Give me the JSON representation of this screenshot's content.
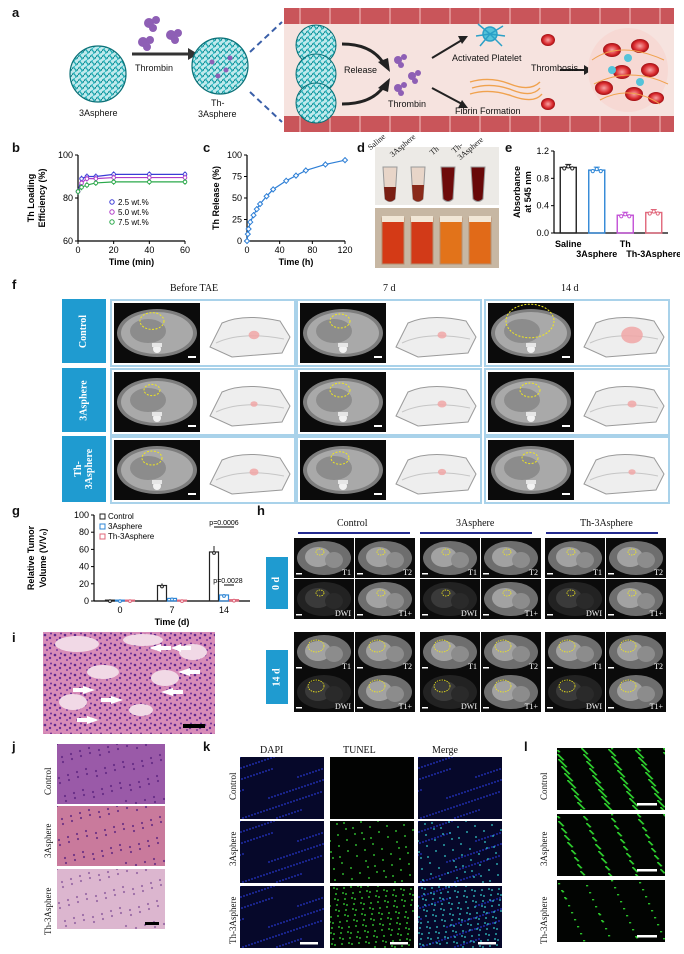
{
  "panels": {
    "a": "a",
    "b": "b",
    "c": "c",
    "d": "d",
    "e": "e",
    "f": "f",
    "g": "g",
    "h": "h",
    "i": "i",
    "j": "j",
    "k": "k",
    "l": "l"
  },
  "schematic": {
    "sphere_label": "3Asphere",
    "thrombin_arrow_label": "Thrombin",
    "loaded_label_line1": "Th-",
    "loaded_label_line2": "3Asphere",
    "release_label": "Release",
    "thrombin_label": "Thrombin",
    "platelet_label": "Activated Platelet",
    "fibrin_label": "Fibrin Formation",
    "thrombosis_label": "Thrombosis"
  },
  "panel_d": {
    "tubes": [
      "Saline",
      "3Asphere",
      "Th",
      "Th-\n3Asphere"
    ]
  },
  "panel_f": {
    "columns": [
      "Before TAE",
      "7 d",
      "14 d"
    ],
    "rows": [
      "Control",
      "3Asphere",
      "Th-\n3Asphere"
    ]
  },
  "panel_h": {
    "groups": [
      "Control",
      "3Asphere",
      "Th-3Asphere"
    ],
    "timepoints": [
      "0 d",
      "14 d"
    ],
    "sequences": [
      "T1",
      "T2",
      "DWI",
      "T1+"
    ]
  },
  "panel_j": {
    "rows": [
      "Control",
      "3Asphere",
      "Th-3Asphere"
    ]
  },
  "panel_k": {
    "columns": [
      "DAPI",
      "TUNEL",
      "Merge"
    ],
    "rows": [
      "Control",
      "3Asphere",
      "Th-3Asphere"
    ]
  },
  "panel_l": {
    "rows": [
      "Control",
      "3Asphere",
      "Th-3Asphere"
    ]
  },
  "chart_data": [
    {
      "id": "b",
      "type": "line",
      "xlabel": "Time (min)",
      "ylabel": "Th Loading Efficiency (%)",
      "ylabel_line1": "Th Loading",
      "ylabel_line2": "Efficiency (%)",
      "xlim": [
        0,
        60
      ],
      "ylim": [
        60,
        100
      ],
      "xticks": [
        0,
        20,
        40,
        60
      ],
      "yticks": [
        60,
        80,
        100
      ],
      "x": [
        0,
        2,
        5,
        10,
        20,
        40,
        60
      ],
      "series": [
        {
          "name": "2.5 wt.%",
          "color": "#3b3bd6",
          "marker": "diamond",
          "values": [
            83,
            89,
            90,
            90,
            91,
            91,
            91
          ]
        },
        {
          "name": "5.0 wt.%",
          "color": "#b03cc8",
          "marker": "triangle-down",
          "values": [
            83,
            87,
            89,
            89,
            89.5,
            89.5,
            89.5
          ]
        },
        {
          "name": "7.5 wt.%",
          "color": "#2aa84a",
          "marker": "triangle-up",
          "values": [
            83,
            85,
            86,
            87,
            87.5,
            87.5,
            87.5
          ]
        }
      ]
    },
    {
      "id": "c",
      "type": "line",
      "xlabel": "Time (h)",
      "ylabel": "Th Release (%)",
      "xlim": [
        0,
        120
      ],
      "ylim": [
        0,
        100
      ],
      "xticks": [
        0,
        40,
        80,
        120
      ],
      "yticks": [
        0,
        25,
        50,
        75,
        100
      ],
      "x": [
        0,
        1,
        2,
        4,
        8,
        12,
        16,
        24,
        32,
        48,
        60,
        72,
        96,
        120
      ],
      "series": [
        {
          "name": "",
          "color": "#2e7fd6",
          "values": [
            0,
            8,
            14,
            22,
            30,
            37,
            43,
            52,
            60,
            70,
            76,
            82,
            89,
            94
          ]
        }
      ]
    },
    {
      "id": "e",
      "type": "bar",
      "ylabel": "Absorbance at 545 nm",
      "ylabel_line1": "Absorbance",
      "ylabel_line2": "at 545 nm",
      "categories": [
        "Saline",
        "3Asphere",
        "Th",
        "Th-3Asphere"
      ],
      "values": [
        0.96,
        0.92,
        0.26,
        0.3
      ],
      "colors": [
        "#222222",
        "#2e86d6",
        "#c24fd6",
        "#e0667a"
      ],
      "ylim": [
        0,
        1.2
      ],
      "yticks": [
        0,
        0.4,
        0.8,
        1.2
      ],
      "yticklabels": [
        "0.0",
        "0.4",
        "0.8",
        "1.2"
      ]
    },
    {
      "id": "g",
      "type": "bar",
      "xlabel": "Time (d)",
      "ylabel": "Relative Tumor Volume (V/V₀)",
      "ylabel_line1": "Relative Tumor",
      "ylabel_line2": "Volume (V/V₀)",
      "categories": [
        "0",
        "7",
        "14"
      ],
      "series": [
        {
          "name": "Control",
          "color": "#222222",
          "values": [
            1,
            18,
            57
          ]
        },
        {
          "name": "3Asphere",
          "color": "#2e86d6",
          "values": [
            1,
            3,
            7
          ]
        },
        {
          "name": "Th-3Asphere",
          "color": "#e0667a",
          "values": [
            1,
            1,
            1.5
          ]
        }
      ],
      "ylim": [
        0,
        100
      ],
      "yticks": [
        0,
        20,
        40,
        60,
        80,
        100
      ],
      "annotations": [
        "p=0.0006",
        "p=0.0028"
      ]
    }
  ]
}
